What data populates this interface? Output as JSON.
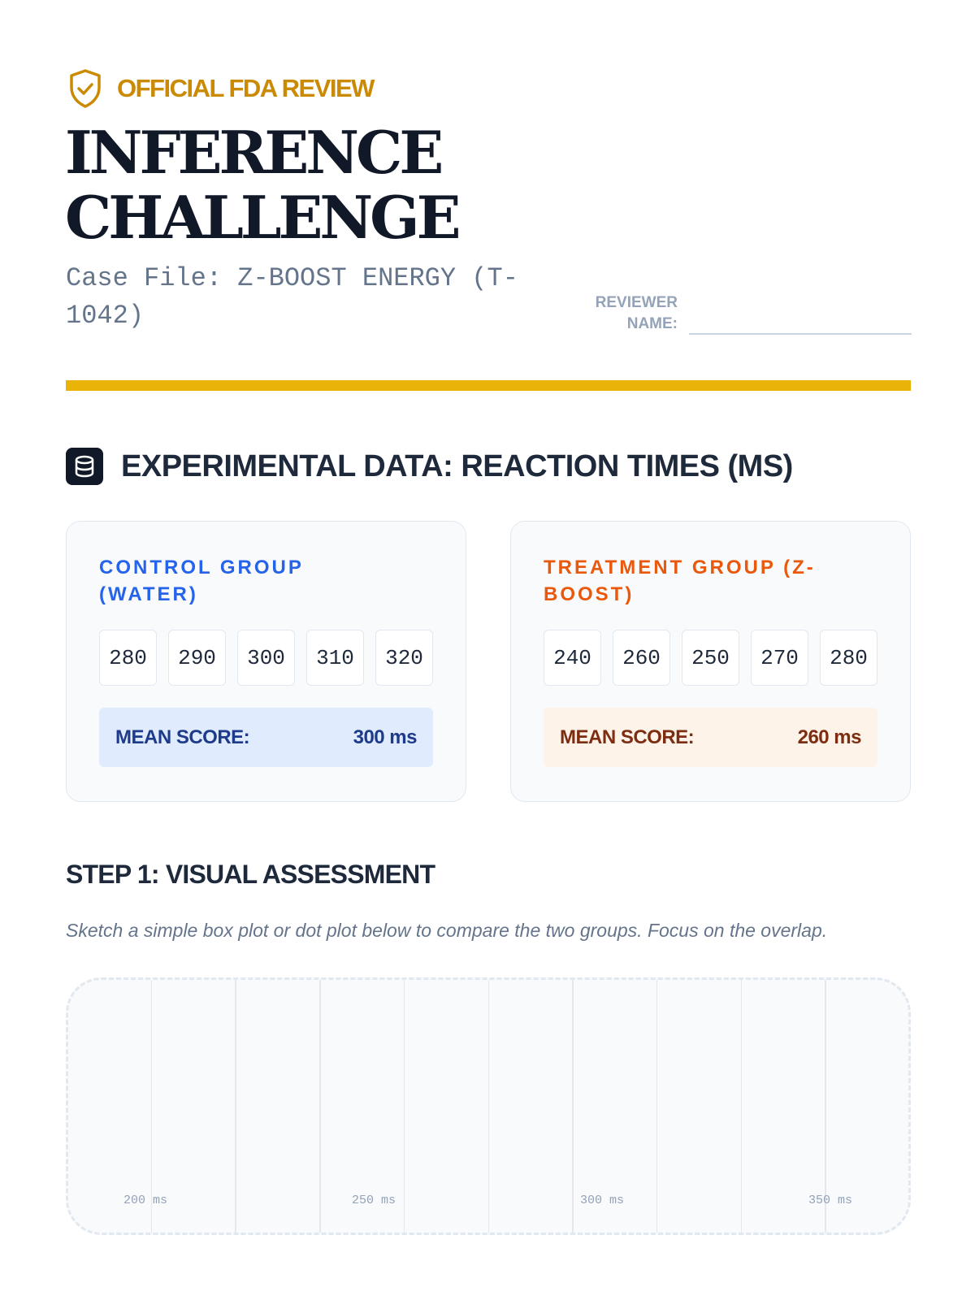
{
  "header": {
    "badge": "OFFICIAL FDA REVIEW",
    "badge_icon": "shield-check-icon",
    "title_line1": "INFERENCE",
    "title_line2": "CHALLENGE",
    "case_file": "Case File: Z-BOOST ENERGY (T-1042)",
    "reviewer_label": "REVIEWER NAME:",
    "reviewer_value": ""
  },
  "section": {
    "icon": "database-icon",
    "title": "EXPERIMENTAL DATA: REACTION TIMES (MS)"
  },
  "control": {
    "title": "CONTROL GROUP (WATER)",
    "values": [
      "280",
      "290",
      "300",
      "310",
      "320"
    ],
    "mean_label": "MEAN SCORE:",
    "mean_value": "300 ms",
    "color": "#2563eb"
  },
  "treatment": {
    "title": "TREATMENT GROUP (Z-BOOST)",
    "values": [
      "240",
      "260",
      "250",
      "270",
      "280"
    ],
    "mean_label": "MEAN SCORE:",
    "mean_value": "260 ms",
    "color": "#ea580c"
  },
  "step1": {
    "title": "STEP 1: VISUAL ASSESSMENT",
    "instructions": "Sketch a simple box plot or dot plot below to compare the two groups. Focus on the overlap.",
    "axis_ticks": [
      "200 ms",
      "250 ms",
      "300 ms",
      "350 ms"
    ]
  },
  "colors": {
    "accent": "#eab308",
    "badge": "#ca8a04",
    "ink": "#111827"
  }
}
